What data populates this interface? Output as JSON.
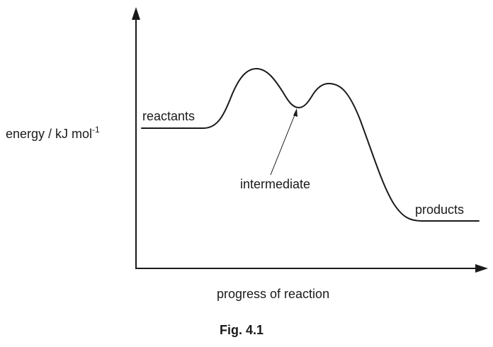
{
  "axes": {
    "y_label": "energy / kJ mol",
    "y_label_superscript": "-1",
    "x_label": "progress of reaction"
  },
  "labels": {
    "reactants": "reactants",
    "intermediate": "intermediate",
    "products": "products"
  },
  "caption": "Fig. 4.1",
  "colors": {
    "line": "#1a1a1a",
    "background": "#ffffff"
  }
}
